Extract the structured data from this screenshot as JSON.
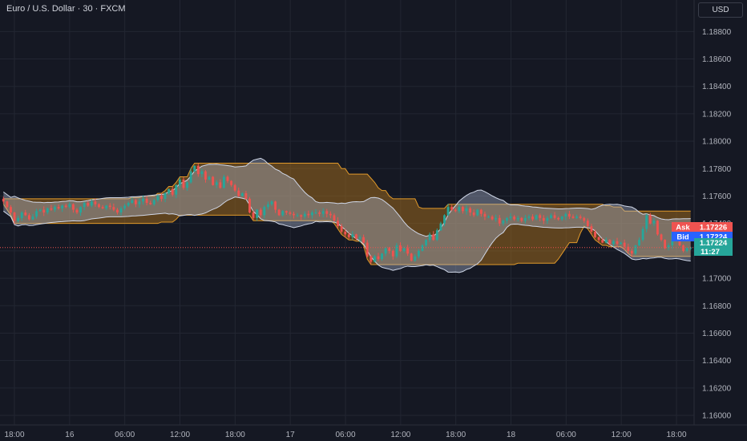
{
  "header": {
    "title": "Euro / U.S. Dollar · 30 · FXCM",
    "currency": "USD"
  },
  "colors": {
    "background": "#151823",
    "up": "#26a69a",
    "down": "#ef5350",
    "keltner_fill": "rgba(155,104,30,0.55)",
    "keltner_line": "#e0992a",
    "bb_fill": "rgba(175,190,215,0.38)",
    "bb_line": "#cfd6e6",
    "ask": "#ef5350",
    "bid": "#2962ff",
    "last": "#26a69a"
  },
  "price_badges": {
    "ask_label": "Ask",
    "ask_value": "1.17226",
    "bid_label": "Bid",
    "bid_value": "1.17224",
    "last_value": "1.17224",
    "countdown": "11:27"
  },
  "chart_data": {
    "type": "candlestick",
    "title": "Euro / U.S. Dollar · 30 · FXCM",
    "y_ticks": [
      "1.18800",
      "1.18600",
      "1.18400",
      "1.18200",
      "1.18000",
      "1.17800",
      "1.17600",
      "1.17400",
      "1.17200",
      "1.17000",
      "1.16800",
      "1.16600",
      "1.16400",
      "1.16200",
      "1.16000"
    ],
    "x_ticks": [
      "18:00",
      "16",
      "06:00",
      "12:00",
      "18:00",
      "17",
      "06:00",
      "12:00",
      "18:00",
      "18",
      "06:00",
      "12:00",
      "18:00"
    ],
    "ylim": [
      1.1593,
      1.1903
    ],
    "grid": true,
    "last_price": 1.17224,
    "candles_close": [
      1.1756,
      1.1752,
      1.1748,
      1.1742,
      1.1744,
      1.1748,
      1.1746,
      1.1743,
      1.1745,
      1.1749,
      1.175,
      1.1748,
      1.1751,
      1.175,
      1.1752,
      1.1751,
      1.1753,
      1.1752,
      1.1754,
      1.175,
      1.1748,
      1.1752,
      1.1755,
      1.1753,
      1.1756,
      1.1754,
      1.1752,
      1.1751,
      1.1753,
      1.1752,
      1.175,
      1.1748,
      1.1751,
      1.1753,
      1.1755,
      1.1757,
      1.1754,
      1.1756,
      1.1758,
      1.1755,
      1.1754,
      1.1757,
      1.176,
      1.1758,
      1.1762,
      1.1765,
      1.1761,
      1.1768,
      1.1772,
      1.1766,
      1.177,
      1.1778,
      1.1782,
      1.1776,
      1.1778,
      1.1772,
      1.1774,
      1.1768,
      1.177,
      1.1766,
      1.1774,
      1.1771,
      1.1768,
      1.1764,
      1.176,
      1.1762,
      1.1758,
      1.1748,
      1.1744,
      1.175,
      1.1746,
      1.1752,
      1.1754,
      1.1756,
      1.175,
      1.1746,
      1.1749,
      1.1748,
      1.1747,
      1.1746,
      1.1746,
      1.1745,
      1.1747,
      1.1746,
      1.1748,
      1.1748,
      1.1747,
      1.1749,
      1.1747,
      1.1746,
      1.1742,
      1.1738,
      1.1734,
      1.1732,
      1.173,
      1.1732,
      1.1729,
      1.173,
      1.1726,
      1.1716,
      1.1712,
      1.1716,
      1.1714,
      1.1718,
      1.1722,
      1.172,
      1.1716,
      1.1724,
      1.172,
      1.1722,
      1.1718,
      1.1713,
      1.1716,
      1.172,
      1.1724,
      1.1728,
      1.1732,
      1.1728,
      1.1735,
      1.174,
      1.1746,
      1.1752,
      1.175,
      1.1749,
      1.1752,
      1.1749,
      1.1751,
      1.1748,
      1.1746,
      1.175,
      1.1747,
      1.1745,
      1.1745,
      1.1743,
      1.1744,
      1.174,
      1.1742,
      1.1744,
      1.1745,
      1.1743,
      1.1744,
      1.1742,
      1.1744,
      1.1745,
      1.1743,
      1.1746,
      1.1744,
      1.1742,
      1.1744,
      1.1746,
      1.1744,
      1.1743,
      1.1745,
      1.1747,
      1.1745,
      1.1744,
      1.1745,
      1.1744,
      1.1742,
      1.1738,
      1.1734,
      1.173,
      1.1728,
      1.1726,
      1.1728,
      1.1725,
      1.1727,
      1.1725,
      1.1726,
      1.1723,
      1.172,
      1.1718,
      1.1724,
      1.1728,
      1.1736,
      1.1746,
      1.174,
      1.1742,
      1.1732,
      1.1728,
      1.1722,
      1.1724,
      1.1734,
      1.173,
      1.1724,
      1.172,
      1.1722,
      1.17224
    ]
  }
}
